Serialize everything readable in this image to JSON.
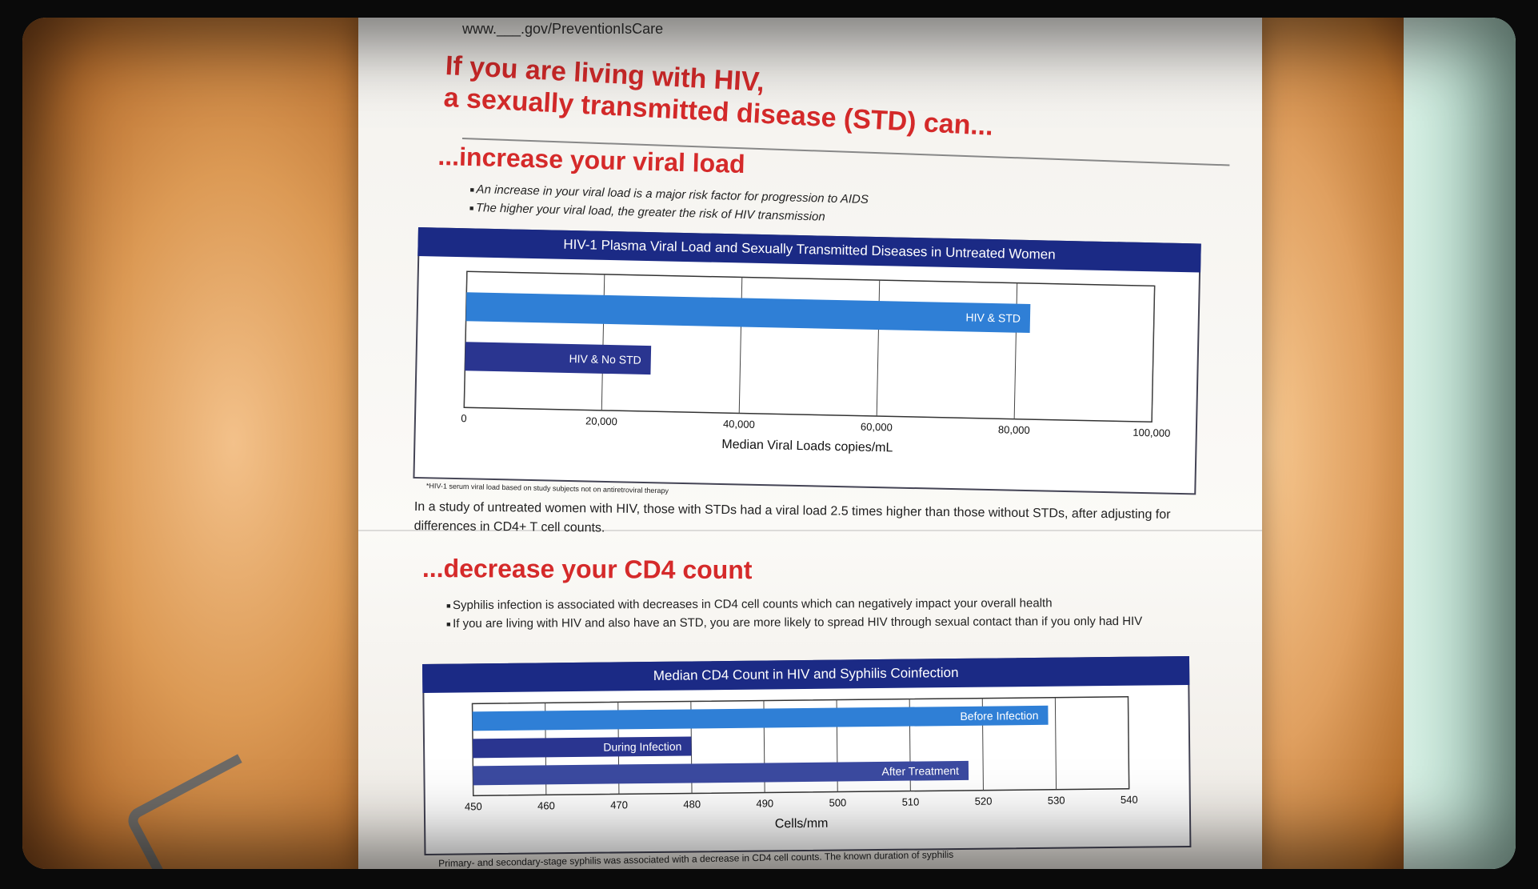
{
  "poster": {
    "url": "www.___.gov/PreventionIsCare",
    "headline_line1": "If you are living with HIV,",
    "headline_line2": "a sexually transmitted disease (STD) can...",
    "section1": {
      "title": "...increase your viral load",
      "bullets": [
        "An increase in your viral load is a major risk factor for progression to AIDS",
        "The higher your viral load, the greater the risk of HIV transmission"
      ]
    },
    "chart1_footnote": "*HIV-1 serum viral load based on study subjects not on antiretroviral therapy",
    "paragraph1": "In a study of untreated women with HIV, those with STDs had a viral load 2.5 times higher than those without STDs, after adjusting for differences in CD4+ T cell counts.",
    "section2": {
      "title": "...decrease your CD4 count",
      "bullets": [
        "Syphilis infection is associated with decreases in CD4 cell counts which can negatively impact your overall health",
        "If you are living with HIV and also have an STD, you are more likely to spread HIV through sexual contact than if you only had HIV"
      ]
    },
    "paragraph2": "Primary- and secondary-stage syphilis was associated with a decrease in CD4 cell counts. The known duration of syphilis"
  },
  "chart_data": [
    {
      "type": "bar",
      "orientation": "horizontal",
      "title": "HIV-1 Plasma Viral Load and Sexually Transmitted Diseases in Untreated Women",
      "xlabel": "Median Viral Loads copies/mL",
      "categories": [
        "HIV & STD",
        "HIV & No STD"
      ],
      "values": [
        82000,
        27000
      ],
      "xlim": [
        0,
        100000
      ],
      "xticks": [
        "0",
        "20,000",
        "40,000",
        "60,000",
        "80,000",
        "100,000"
      ],
      "colors": [
        "#2f7fd6",
        "#2a3590"
      ],
      "grid": true
    },
    {
      "type": "bar",
      "orientation": "horizontal",
      "title": "Median CD4 Count in HIV and Syphilis Coinfection",
      "xlabel": "Cells/mm",
      "categories": [
        "Before Infection",
        "During Infection",
        "After Treatment"
      ],
      "values": [
        529,
        480,
        518
      ],
      "xlim": [
        450,
        540
      ],
      "xticks": [
        "450",
        "460",
        "470",
        "480",
        "490",
        "500",
        "510",
        "520",
        "530",
        "540"
      ],
      "colors": [
        "#2f7fd6",
        "#2a3590",
        "#3b4aa0"
      ],
      "grid": true
    }
  ]
}
